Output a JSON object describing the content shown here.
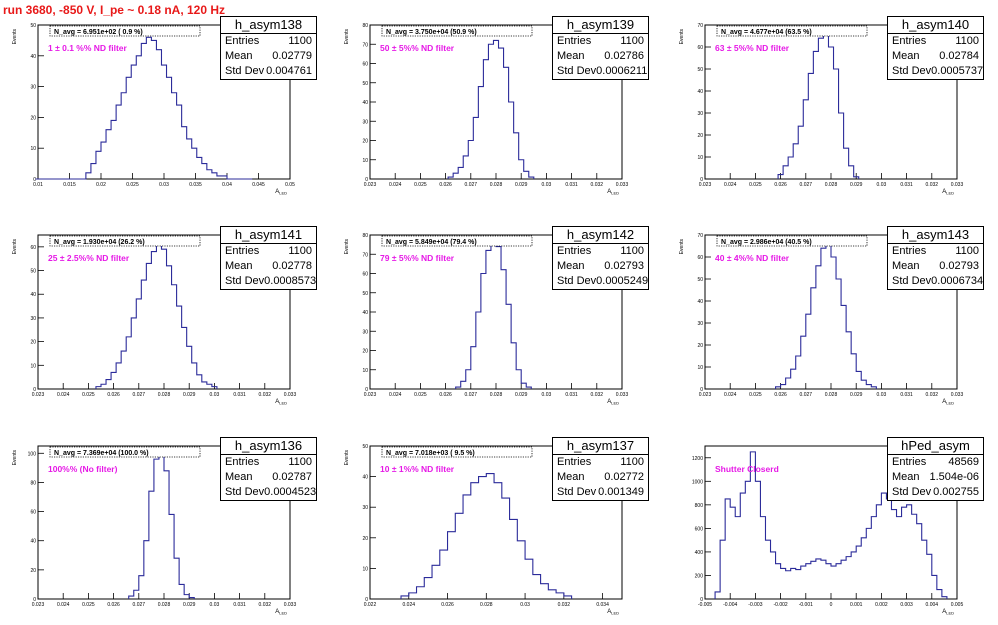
{
  "run_title": "run 3680,  -850 V, I_pe ~ 0.18 nA, 120 Hz",
  "colors": {
    "hist": "#2b2b9a",
    "label": "#e619e6",
    "title": "#e81919",
    "avg": "#000000"
  },
  "stat_labels": {
    "entries": "Entries",
    "mean": "Mean",
    "std": "Std Dev"
  },
  "chart_data": [
    {
      "type": "histogram",
      "name": "h_asym138",
      "stats": {
        "entries": "1100",
        "mean": "0.02779",
        "std": "0.004761"
      },
      "navg_text": "N_avg = 6.951e+02 ( 0.9 %)",
      "label": "1 ± 0.1 %% ND filter",
      "xlabel": "A_LED",
      "ylabel": "Events",
      "xlim": [
        0.01,
        0.05
      ],
      "ylim": [
        0,
        50
      ],
      "xticks": [
        "0.01",
        "0.015",
        "0.02",
        "0.025",
        "0.03",
        "0.035",
        "0.04",
        "0.045",
        "0.05"
      ],
      "yticks": [
        "0",
        "10",
        "20",
        "30",
        "40",
        "50"
      ],
      "edges": [
        0.0096,
        0.0176,
        0.0184,
        0.0192,
        0.02,
        0.0208,
        0.0216,
        0.0224,
        0.0232,
        0.024,
        0.0248,
        0.0256,
        0.0264,
        0.0272,
        0.028,
        0.0288,
        0.0296,
        0.0304,
        0.0312,
        0.032,
        0.0328,
        0.0336,
        0.0344,
        0.0352,
        0.036,
        0.0368,
        0.0376,
        0.0384,
        0.0392,
        0.04,
        0.0408,
        0.0416,
        0.044
      ],
      "counts": [
        0,
        2,
        5,
        9,
        12,
        16,
        19,
        24,
        28,
        33,
        37,
        40,
        44,
        46,
        45,
        42,
        37,
        33,
        28,
        24,
        17,
        13,
        10,
        7,
        5,
        3,
        2,
        1,
        1,
        0,
        0,
        0
      ]
    },
    {
      "type": "histogram",
      "name": "h_asym139",
      "stats": {
        "entries": "1100",
        "mean": "0.02786",
        "std": "0.0006211"
      },
      "navg_text": "N_avg = 3.750e+04 (50.9 %)",
      "label": "50 ± 5%% ND filter",
      "xlabel": "A_LED",
      "ylabel": "Events",
      "xlim": [
        0.023,
        0.033
      ],
      "ylim": [
        0,
        80
      ],
      "xticks": [
        "0.023",
        "0.024",
        "0.025",
        "0.026",
        "0.027",
        "0.028",
        "0.029",
        "0.03",
        "0.031",
        "0.032",
        "0.033"
      ],
      "yticks": [
        "0",
        "10",
        "20",
        "30",
        "40",
        "50",
        "60",
        "70",
        "80"
      ],
      "edges": [
        0.0261,
        0.0263,
        0.0265,
        0.0267,
        0.0269,
        0.0271,
        0.0273,
        0.0275,
        0.0277,
        0.0279,
        0.0281,
        0.0283,
        0.0285,
        0.0287,
        0.0289,
        0.0291,
        0.0293,
        0.0295
      ],
      "counts": [
        1,
        3,
        6,
        12,
        20,
        32,
        48,
        62,
        70,
        72,
        68,
        58,
        40,
        24,
        10,
        4,
        1
      ]
    },
    {
      "type": "histogram",
      "name": "h_asym140",
      "stats": {
        "entries": "1100",
        "mean": "0.02784",
        "std": "0.0005737"
      },
      "navg_text": "N_avg = 4.677e+04 (63.5 %)",
      "label": "63 ± 5%% ND filter",
      "xlabel": "A_LED",
      "ylabel": "Events",
      "xlim": [
        0.023,
        0.033
      ],
      "ylim": [
        0,
        70
      ],
      "xticks": [
        "0.023",
        "0.024",
        "0.025",
        "0.026",
        "0.027",
        "0.028",
        "0.029",
        "0.03",
        "0.031",
        "0.032",
        "0.033"
      ],
      "yticks": [
        "0",
        "10",
        "20",
        "30",
        "40",
        "50",
        "60",
        "70"
      ],
      "edges": [
        0.0259,
        0.0261,
        0.0263,
        0.0265,
        0.0267,
        0.0269,
        0.0271,
        0.0273,
        0.0275,
        0.0277,
        0.0279,
        0.0281,
        0.0283,
        0.0285,
        0.0287,
        0.0289,
        0.0291
      ],
      "counts": [
        2,
        6,
        10,
        16,
        24,
        36,
        48,
        58,
        64,
        66,
        60,
        50,
        30,
        14,
        6,
        1
      ]
    },
    {
      "type": "histogram",
      "name": "h_asym141",
      "stats": {
        "entries": "1100",
        "mean": "0.02778",
        "std": "0.0008573"
      },
      "navg_text": "N_avg = 1.930e+04 (26.2 %)",
      "label": "25 ± 2.5%% ND filter",
      "xlabel": "A_LED",
      "ylabel": "Events",
      "xlim": [
        0.023,
        0.033
      ],
      "ylim": [
        0,
        65
      ],
      "xticks": [
        "0.023",
        "0.024",
        "0.025",
        "0.026",
        "0.027",
        "0.028",
        "0.029",
        "0.03",
        "0.031",
        "0.032",
        "0.033"
      ],
      "yticks": [
        "0",
        "10",
        "20",
        "30",
        "40",
        "50",
        "60"
      ],
      "edges": [
        0.0253,
        0.0255,
        0.0257,
        0.0259,
        0.0261,
        0.0263,
        0.0265,
        0.0267,
        0.0269,
        0.0271,
        0.0273,
        0.0275,
        0.0277,
        0.0279,
        0.0281,
        0.0283,
        0.0285,
        0.0287,
        0.0289,
        0.0291,
        0.0293,
        0.0295,
        0.0297,
        0.0299,
        0.0301
      ],
      "counts": [
        1,
        2,
        4,
        7,
        11,
        16,
        22,
        30,
        38,
        46,
        53,
        58,
        62,
        59,
        52,
        44,
        35,
        26,
        18,
        11,
        6,
        3,
        2,
        1
      ]
    },
    {
      "type": "histogram",
      "name": "h_asym142",
      "stats": {
        "entries": "1100",
        "mean": "0.02793",
        "std": "0.0005249"
      },
      "navg_text": "N_avg = 5.849e+04 (79.4 %)",
      "label": "79 ± 5%% ND filter",
      "xlabel": "A_LED",
      "ylabel": "Events",
      "xlim": [
        0.023,
        0.033
      ],
      "ylim": [
        0,
        80
      ],
      "xticks": [
        "0.023",
        "0.024",
        "0.025",
        "0.026",
        "0.027",
        "0.028",
        "0.029",
        "0.03",
        "0.031",
        "0.032",
        "0.033"
      ],
      "yticks": [
        "0",
        "10",
        "20",
        "30",
        "40",
        "50",
        "60",
        "70",
        "80"
      ],
      "edges": [
        0.0264,
        0.0266,
        0.0268,
        0.027,
        0.0272,
        0.0274,
        0.0276,
        0.0278,
        0.028,
        0.0282,
        0.0284,
        0.0286,
        0.0288,
        0.029,
        0.0292,
        0.0294
      ],
      "counts": [
        1,
        4,
        10,
        22,
        40,
        60,
        72,
        77,
        74,
        62,
        44,
        24,
        10,
        3,
        1
      ]
    },
    {
      "type": "histogram",
      "name": "h_asym143",
      "stats": {
        "entries": "1100",
        "mean": "0.02793",
        "std": "0.0006734"
      },
      "navg_text": "N_avg = 2.986e+04 (40.5 %)",
      "label": "40 ± 4%% ND filter",
      "xlabel": "A_LED",
      "ylabel": "Events",
      "xlim": [
        0.023,
        0.033
      ],
      "ylim": [
        0,
        70
      ],
      "xticks": [
        "0.023",
        "0.024",
        "0.025",
        "0.026",
        "0.027",
        "0.028",
        "0.029",
        "0.03",
        "0.031",
        "0.032",
        "0.033"
      ],
      "yticks": [
        "0",
        "10",
        "20",
        "30",
        "40",
        "50",
        "60",
        "70"
      ],
      "edges": [
        0.0258,
        0.026,
        0.0262,
        0.0264,
        0.0266,
        0.0268,
        0.027,
        0.0272,
        0.0274,
        0.0276,
        0.0278,
        0.028,
        0.0282,
        0.0284,
        0.0286,
        0.0288,
        0.029,
        0.0292,
        0.0294,
        0.0296,
        0.0298
      ],
      "counts": [
        1,
        2,
        5,
        9,
        15,
        24,
        34,
        46,
        56,
        64,
        66,
        60,
        50,
        38,
        26,
        16,
        8,
        4,
        2,
        1
      ]
    },
    {
      "type": "histogram",
      "name": "h_asym136",
      "stats": {
        "entries": "1100",
        "mean": "0.02787",
        "std": "0.0004523"
      },
      "navg_text": "N_avg = 7.369e+04 (100.0 %)",
      "label": "100%% (No filter)",
      "xlabel": "A_LED",
      "ylabel": "Events",
      "xlim": [
        0.023,
        0.033
      ],
      "ylim": [
        0,
        105
      ],
      "xticks": [
        "0.023",
        "0.024",
        "0.025",
        "0.026",
        "0.027",
        "0.028",
        "0.029",
        "0.03",
        "0.031",
        "0.032",
        "0.033"
      ],
      "yticks": [
        "0",
        "20",
        "40",
        "60",
        "80",
        "100"
      ],
      "edges": [
        0.0266,
        0.0268,
        0.027,
        0.0272,
        0.0274,
        0.0276,
        0.0278,
        0.028,
        0.0282,
        0.0284,
        0.0286,
        0.0288,
        0.029,
        0.0292
      ],
      "counts": [
        2,
        6,
        16,
        40,
        74,
        96,
        100,
        88,
        58,
        28,
        10,
        3,
        1
      ]
    },
    {
      "type": "histogram",
      "name": "h_asym137",
      "stats": {
        "entries": "1100",
        "mean": "0.02772",
        "std": "0.001349"
      },
      "navg_text": "N_avg = 7.018e+03 ( 9.5 %)",
      "label": "10 ± 1%% ND filter",
      "xlabel": "A_LED",
      "ylabel": "Events",
      "xlim": [
        0.022,
        0.035
      ],
      "ylim": [
        0,
        50
      ],
      "xticks": [
        "0.022",
        "0.024",
        "0.026",
        "0.028",
        "0.03",
        "0.032",
        "0.034"
      ],
      "yticks": [
        "0",
        "10",
        "20",
        "30",
        "40",
        "50"
      ],
      "edges": [
        0.0236,
        0.024,
        0.0244,
        0.0248,
        0.0252,
        0.0256,
        0.026,
        0.0264,
        0.0268,
        0.0272,
        0.0276,
        0.028,
        0.0284,
        0.0288,
        0.0292,
        0.0296,
        0.03,
        0.0304,
        0.0308,
        0.0312,
        0.0316,
        0.032,
        0.0324
      ],
      "counts": [
        1,
        2,
        4,
        7,
        11,
        16,
        22,
        28,
        34,
        38,
        40,
        41,
        38,
        33,
        26,
        19,
        13,
        8,
        5,
        3,
        2,
        1
      ]
    },
    {
      "type": "histogram",
      "name": "hPed_asym",
      "stats": {
        "entries": "48569",
        "mean": "1.504e-06",
        "std": "0.002755"
      },
      "navg_text": "",
      "label": "Shutter Closerd",
      "xlabel": "A_LED",
      "ylabel": "",
      "xlim": [
        -0.005,
        0.005
      ],
      "ylim": [
        0,
        1300
      ],
      "xticks": [
        "-0.005",
        "-0.004",
        "-0.003",
        "-0.002",
        "-0.001",
        "0",
        "0.001",
        "0.002",
        "0.003",
        "0.004",
        "0.005"
      ],
      "yticks": [
        "0",
        "200",
        "400",
        "600",
        "800",
        "1000",
        "1200"
      ],
      "edges": [
        -0.0046,
        -0.0044,
        -0.0042,
        -0.004,
        -0.0038,
        -0.0036,
        -0.0034,
        -0.0032,
        -0.003,
        -0.0028,
        -0.0026,
        -0.0024,
        -0.0022,
        -0.002,
        -0.0018,
        -0.0016,
        -0.0014,
        -0.0012,
        -0.001,
        -0.0008,
        -0.0006,
        -0.0004,
        -0.0002,
        0.0,
        0.0002,
        0.0004,
        0.0006,
        0.0008,
        0.001,
        0.0012,
        0.0014,
        0.0016,
        0.0018,
        0.002,
        0.0022,
        0.0024,
        0.0026,
        0.0028,
        0.003,
        0.0032,
        0.0034,
        0.0036,
        0.0038,
        0.004,
        0.0042,
        0.0044,
        0.0046
      ],
      "counts": [
        60,
        500,
        850,
        780,
        700,
        900,
        1000,
        1250,
        1000,
        700,
        500,
        400,
        300,
        260,
        240,
        260,
        250,
        280,
        300,
        320,
        340,
        330,
        300,
        280,
        300,
        330,
        360,
        400,
        450,
        520,
        600,
        700,
        800,
        900,
        850,
        760,
        700,
        780,
        800,
        720,
        640,
        500,
        380,
        200,
        80,
        20
      ]
    }
  ]
}
